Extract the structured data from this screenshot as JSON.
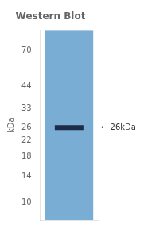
{
  "chart_data": {
    "type": "scatter",
    "title": "Western Blot",
    "ylabel": "kDa",
    "categories": [
      null
    ],
    "values": [
      26
    ],
    "color": "#1e2a4a",
    "marker": "line",
    "log": "y",
    "ylim": [
      8,
      90
    ],
    "yticks": [
      70,
      44,
      33,
      26,
      22,
      18,
      14,
      10
    ],
    "grid": false,
    "tick_labels": "y",
    "annotations": [
      {
        "text": "← 26kDa",
        "y": 26
      }
    ]
  }
}
